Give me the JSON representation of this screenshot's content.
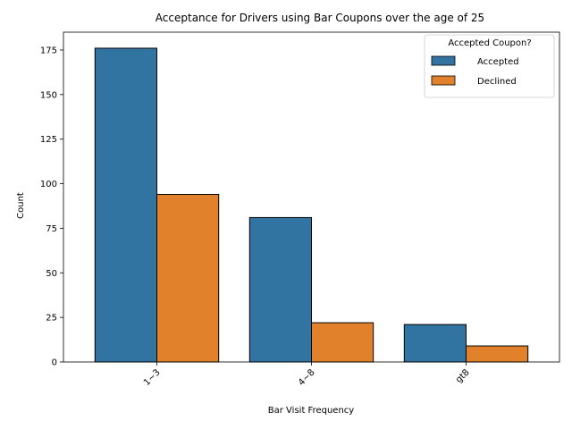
{
  "chart_data": {
    "type": "bar",
    "title": "Acceptance for Drivers using Bar Coupons over the age of 25",
    "xlabel": "Bar Visit Frequency",
    "ylabel": "Count",
    "categories": [
      "1~3",
      "4~8",
      "gt8"
    ],
    "series": [
      {
        "name": "Accepted",
        "values": [
          176,
          81,
          21
        ],
        "color": "#3274a1"
      },
      {
        "name": "Declined",
        "values": [
          94,
          22,
          9
        ],
        "color": "#e1812c"
      }
    ],
    "ylim": [
      0,
      185
    ],
    "yticks": [
      0,
      25,
      50,
      75,
      100,
      125,
      150,
      175
    ],
    "legend": {
      "title": "Accepted Coupon?",
      "position": "top-right"
    },
    "grid": false
  }
}
